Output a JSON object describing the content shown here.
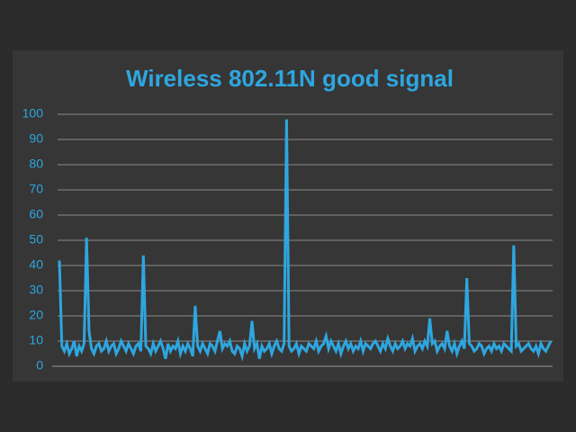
{
  "chart_data": {
    "type": "line",
    "title": "Wireless 802.11N good signal",
    "color": "#2ea6df",
    "ylim": [
      0,
      100
    ],
    "yticks": [
      0,
      10,
      20,
      30,
      40,
      50,
      60,
      70,
      80,
      90,
      100
    ],
    "grid": true,
    "values": [
      42,
      8,
      6,
      9,
      5,
      7,
      10,
      4,
      8,
      6,
      9,
      51,
      14,
      7,
      5,
      8,
      9,
      6,
      7,
      10,
      6,
      8,
      9,
      5,
      7,
      10,
      8,
      6,
      9,
      7,
      5,
      8,
      9,
      6,
      44,
      8,
      7,
      5,
      9,
      6,
      8,
      10,
      7,
      3,
      9,
      6,
      8,
      7,
      10,
      5,
      8,
      6,
      9,
      7,
      4,
      24,
      8,
      6,
      9,
      7,
      5,
      9,
      8,
      6,
      10,
      14,
      7,
      9,
      8,
      10,
      6,
      5,
      8,
      7,
      4,
      9,
      6,
      8,
      18,
      7,
      9,
      3,
      8,
      6,
      7,
      9,
      5,
      8,
      10,
      7,
      6,
      9,
      98,
      8,
      6,
      7,
      9,
      5,
      8,
      7,
      6,
      9,
      8,
      7,
      10,
      6,
      8,
      9,
      12,
      7,
      10,
      8,
      6,
      9,
      5,
      8,
      10,
      7,
      9,
      6,
      8,
      7,
      10,
      6,
      9,
      8,
      7,
      9,
      10,
      8,
      6,
      9,
      7,
      11,
      8,
      6,
      9,
      7,
      8,
      10,
      7,
      9,
      8,
      11,
      6,
      8,
      9,
      7,
      10,
      8,
      19,
      9,
      10,
      6,
      8,
      9,
      7,
      14,
      8,
      6,
      9,
      5,
      8,
      10,
      7,
      35,
      9,
      8,
      6,
      7,
      9,
      8,
      5,
      7,
      8,
      6,
      9,
      7,
      8,
      6,
      9,
      8,
      7,
      6,
      48,
      8,
      9,
      6,
      7,
      8,
      9,
      7,
      6,
      8,
      5,
      9,
      7,
      6,
      8,
      10
    ]
  }
}
